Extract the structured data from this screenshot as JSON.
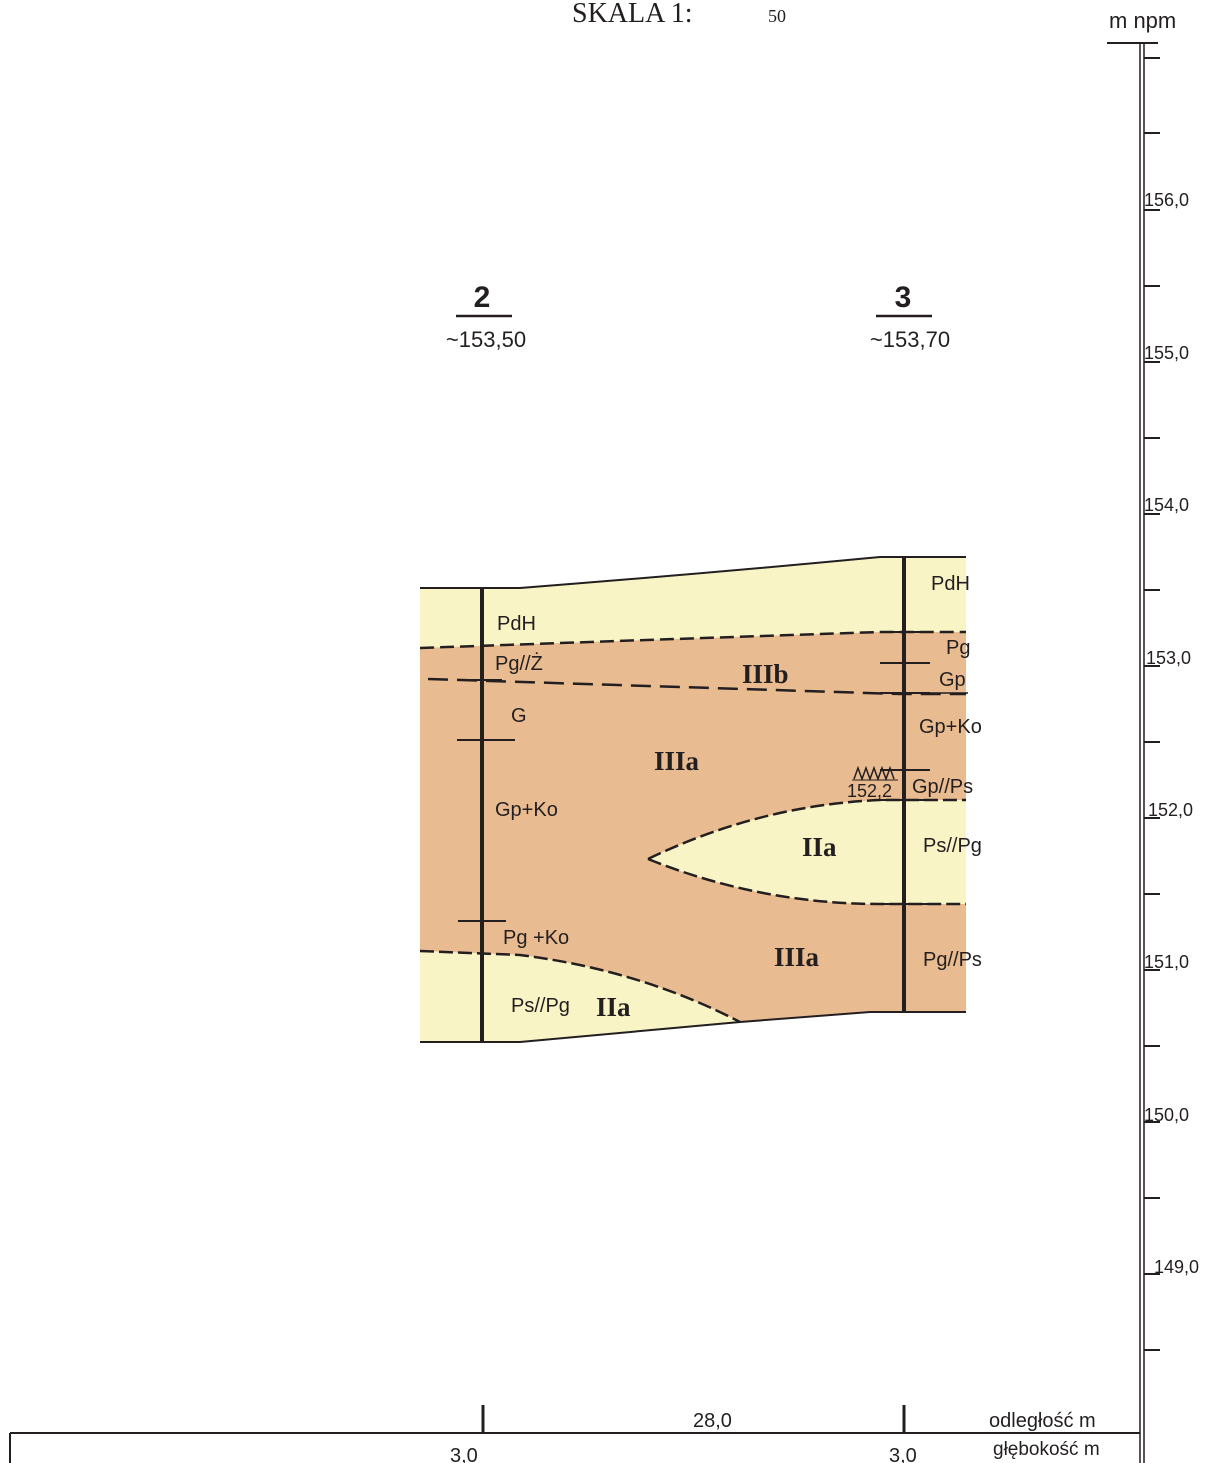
{
  "header": {
    "scale_text": "SKALA 1:",
    "scale_denominator": "50"
  },
  "axis": {
    "unit": "m npm",
    "ticks": [
      "156,0",
      "155,0",
      "154,0",
      "153,0",
      "152,0",
      "151,0",
      "150,0",
      "149,0"
    ]
  },
  "boreholes": [
    {
      "number": "2",
      "elevation": "~153,50"
    },
    {
      "number": "3",
      "elevation": "~153,70"
    }
  ],
  "borehole_2_layers": [
    "PdH",
    "Pg//Ż",
    "G",
    "Gp+Ko",
    "Pg +Ko",
    "Ps//Pg"
  ],
  "borehole_3_layers": [
    "PdH",
    "Pg",
    "Gp",
    "Gp+Ko",
    "Gp//Ps",
    "Ps//Pg",
    "Pg//Ps"
  ],
  "water_level": "152,2",
  "zones": {
    "IIIb": "IIIb",
    "IIIa_upper": "IIIa",
    "IIa_lens": "IIa",
    "IIIa_lower": "IIIa",
    "IIa_bottom": "IIa"
  },
  "table": {
    "distance_label": "odległość  m",
    "depth_label": "głębokość m",
    "distance_value": "28,0",
    "depth_2": "3,0",
    "depth_3": "3,0"
  },
  "colors": {
    "clay": "#e9bb90",
    "sand": "#f9f4c6",
    "line": "#231f20"
  }
}
